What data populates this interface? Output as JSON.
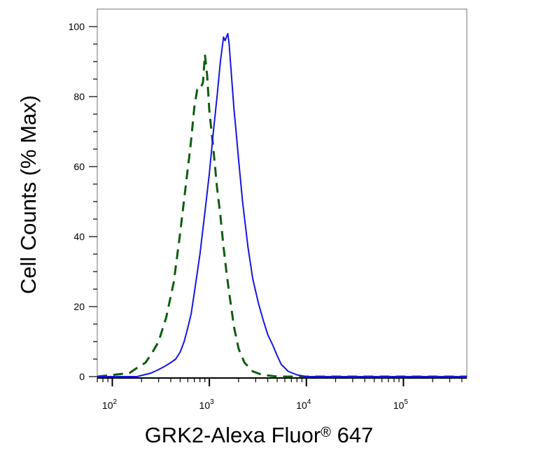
{
  "chart_data": {
    "type": "line",
    "title": "",
    "xlabel": "GRK2-Alexa Fluor",
    "xlabel_mark": "®",
    "xlabel_suffix": " 647",
    "ylabel": "Cell Counts (% Max)",
    "x_scale": "log",
    "xlim": [
      70,
      450000
    ],
    "ylim": [
      0,
      100
    ],
    "y_ticks": [
      0,
      20,
      40,
      60,
      80,
      100
    ],
    "x_major_ticks": [
      {
        "value": 100,
        "base": "10",
        "exp": "2"
      },
      {
        "value": 1000,
        "base": "10",
        "exp": "3"
      },
      {
        "value": 10000,
        "base": "10",
        "exp": "4"
      },
      {
        "value": 100000,
        "base": "10",
        "exp": "5"
      }
    ],
    "grid": false,
    "legend": "none",
    "series": [
      {
        "style": "dashed",
        "color": "#0b5e0b",
        "x": [
          70,
          150,
          180,
          220,
          260,
          300,
          360,
          430,
          500,
          580,
          640,
          700,
          750,
          800,
          860,
          900,
          950,
          1000,
          1100,
          1200,
          1300,
          1400,
          1500,
          1600,
          1800,
          2000,
          2300,
          2800,
          3500,
          5000,
          450000
        ],
        "y": [
          0,
          1,
          2.5,
          4,
          7,
          10,
          17,
          27,
          41,
          56,
          66,
          77,
          82,
          82,
          84,
          92,
          86,
          76,
          65,
          54,
          46,
          37,
          30,
          24,
          14,
          8,
          4,
          1.5,
          0.5,
          0,
          0
        ]
      },
      {
        "style": "solid",
        "color": "#1515e0",
        "x": [
          70,
          180,
          250,
          300,
          350,
          400,
          450,
          500,
          550,
          600,
          650,
          700,
          800,
          900,
          1000,
          1100,
          1200,
          1300,
          1400,
          1450,
          1500,
          1550,
          1600,
          1700,
          1800,
          1900,
          2000,
          2200,
          2500,
          2800,
          3200,
          3600,
          4000,
          4500,
          5000,
          5500,
          6500,
          8000,
          10000,
          450000
        ],
        "y": [
          0,
          0,
          1,
          2,
          3,
          4,
          5,
          7,
          10,
          14,
          18,
          24,
          35,
          47,
          58,
          70,
          80,
          90,
          97,
          96,
          97,
          98,
          95,
          85,
          76,
          69,
          62,
          50,
          37,
          28,
          21,
          16,
          12,
          9,
          6,
          3.5,
          1.5,
          0.5,
          0,
          0
        ]
      }
    ]
  }
}
